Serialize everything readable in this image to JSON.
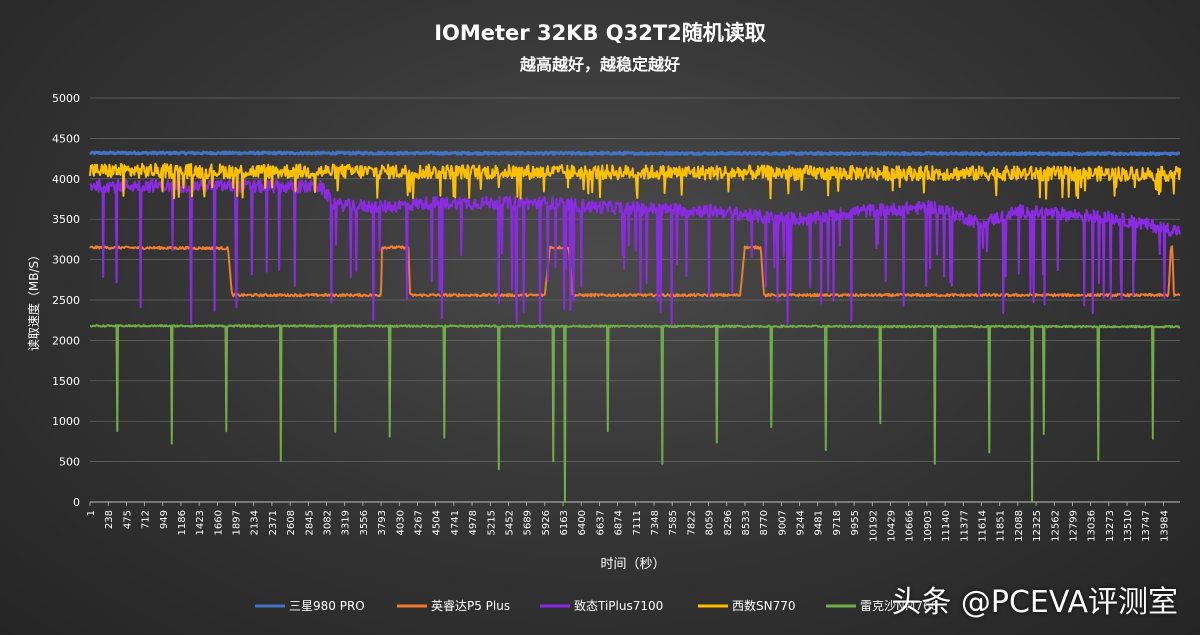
{
  "chart_data": {
    "type": "line",
    "title": "IOMeter 32KB Q32T2随机读取",
    "subtitle": "越高越好，越稳定越好",
    "xlabel": "时间（秒）",
    "ylabel": "读取速度（MB/S）",
    "ylim": [
      0,
      5000
    ],
    "yticks": [
      0,
      500,
      1000,
      1500,
      2000,
      2500,
      3000,
      3500,
      4000,
      4500,
      5000
    ],
    "xlim": [
      1,
      14200
    ],
    "xticks": [
      1,
      238,
      475,
      712,
      949,
      1186,
      1423,
      1660,
      1897,
      2134,
      2371,
      2608,
      2845,
      3082,
      3319,
      3556,
      3793,
      4030,
      4267,
      4504,
      4741,
      4978,
      5215,
      5452,
      5689,
      5926,
      6163,
      6400,
      6637,
      6874,
      7111,
      7348,
      7585,
      7822,
      8059,
      8296,
      8533,
      8770,
      9007,
      9244,
      9481,
      9718,
      9955,
      10192,
      10429,
      10666,
      10903,
      11140,
      11377,
      11614,
      11851,
      12088,
      12325,
      12562,
      12799,
      13036,
      13273,
      13510,
      13747,
      13984
    ],
    "grid": true,
    "legend_position": "bottom",
    "series": [
      {
        "name": "三星980 PRO",
        "color": "#4472c4",
        "points": [
          [
            1,
            4320
          ],
          [
            14200,
            4310
          ]
        ],
        "jitter": 12
      },
      {
        "name": "英睿达P5 Plus",
        "color": "#ed7d31",
        "points": [
          [
            1,
            3150
          ],
          [
            1800,
            3140
          ],
          [
            1850,
            2560
          ],
          [
            3793,
            2560
          ],
          [
            3800,
            3150
          ],
          [
            4150,
            3150
          ],
          [
            4170,
            2560
          ],
          [
            5926,
            2560
          ],
          [
            5990,
            3150
          ],
          [
            6240,
            3150
          ],
          [
            6290,
            2560
          ],
          [
            8470,
            2560
          ],
          [
            8530,
            3150
          ],
          [
            8740,
            3150
          ],
          [
            8780,
            2560
          ],
          [
            14050,
            2560
          ],
          [
            14080,
            3150
          ],
          [
            14100,
            3150
          ],
          [
            14120,
            2560
          ],
          [
            14200,
            2560
          ]
        ],
        "jitter": 15
      },
      {
        "name": "致态TiPlus7100",
        "color": "#8a2be2",
        "points": [
          [
            1,
            3920
          ],
          [
            3000,
            3900
          ],
          [
            3200,
            3680
          ],
          [
            3793,
            3650
          ],
          [
            4400,
            3700
          ],
          [
            6000,
            3700
          ],
          [
            6600,
            3650
          ],
          [
            8200,
            3600
          ],
          [
            8800,
            3520
          ],
          [
            9400,
            3500
          ],
          [
            10000,
            3600
          ],
          [
            11000,
            3650
          ],
          [
            11600,
            3450
          ],
          [
            12100,
            3600
          ],
          [
            13300,
            3520
          ],
          [
            14200,
            3350
          ]
        ],
        "jitter": 80
      },
      {
        "name": "西数SN770",
        "color": "#ffc000",
        "points": [
          [
            1,
            4100
          ],
          [
            14200,
            4060
          ]
        ],
        "jitter": 90
      },
      {
        "name": "雷克沙NM760",
        "color": "#70ad47",
        "points": [
          [
            1,
            2180
          ],
          [
            14200,
            2170
          ]
        ],
        "jitter": 10
      }
    ],
    "legend": [
      "三星980 PRO",
      "英睿达P5 Plus",
      "致态TiPlus7100",
      "西数SN770",
      "雷克沙NM760"
    ]
  },
  "watermark": "头条 @PCEVA评测室"
}
